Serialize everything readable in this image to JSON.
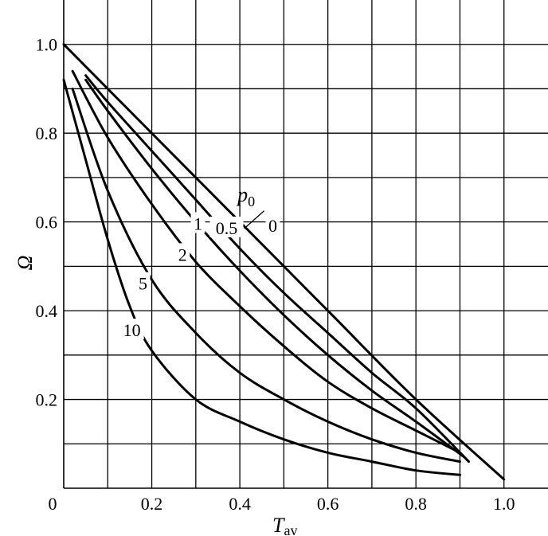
{
  "chart_data": {
    "type": "line",
    "xlabel": "T",
    "xlabel_sub": "av",
    "ylabel": "Ω",
    "xlim": [
      0,
      1.1
    ],
    "ylim": [
      0,
      1.1
    ],
    "grid": true,
    "x_ticks": [
      "0",
      "0.2",
      "0.4",
      "0.6",
      "0.8",
      "1.0"
    ],
    "x_tick_values": [
      0,
      0.2,
      0.4,
      0.6,
      0.8,
      1.0
    ],
    "y_ticks": [
      "0.2",
      "0.4",
      "0.6",
      "0.8",
      "1.0"
    ],
    "y_tick_values": [
      0.2,
      0.4,
      0.6,
      0.8,
      1.0
    ],
    "parameter_label": "p",
    "parameter_label_sub": "0",
    "series": [
      {
        "name": "0",
        "x": [
          0,
          0.2,
          0.4,
          0.6,
          0.8,
          1.0
        ],
        "y": [
          1.0,
          0.8,
          0.6,
          0.4,
          0.2,
          0.02
        ]
      },
      {
        "name": "0.5",
        "x": [
          0.05,
          0.1,
          0.2,
          0.3,
          0.4,
          0.5,
          0.6,
          0.7,
          0.8,
          0.92
        ],
        "y": [
          0.93,
          0.87,
          0.76,
          0.65,
          0.54,
          0.44,
          0.35,
          0.26,
          0.18,
          0.06
        ]
      },
      {
        "name": "1",
        "x": [
          0.05,
          0.1,
          0.2,
          0.3,
          0.4,
          0.5,
          0.6,
          0.7,
          0.8,
          0.91
        ],
        "y": [
          0.92,
          0.85,
          0.72,
          0.6,
          0.49,
          0.39,
          0.3,
          0.22,
          0.15,
          0.07
        ]
      },
      {
        "name": "2",
        "x": [
          0.02,
          0.1,
          0.2,
          0.3,
          0.4,
          0.5,
          0.6,
          0.7,
          0.8,
          0.9
        ],
        "y": [
          0.94,
          0.79,
          0.64,
          0.51,
          0.41,
          0.32,
          0.24,
          0.18,
          0.13,
          0.08
        ]
      },
      {
        "name": "5",
        "x": [
          0.02,
          0.1,
          0.2,
          0.3,
          0.4,
          0.5,
          0.6,
          0.7,
          0.8,
          0.9
        ],
        "y": [
          0.9,
          0.67,
          0.47,
          0.35,
          0.26,
          0.2,
          0.15,
          0.11,
          0.08,
          0.06
        ]
      },
      {
        "name": "10",
        "x": [
          0,
          0.05,
          0.1,
          0.15,
          0.2,
          0.3,
          0.4,
          0.5,
          0.6,
          0.7,
          0.8,
          0.9
        ],
        "y": [
          0.92,
          0.74,
          0.56,
          0.41,
          0.31,
          0.2,
          0.15,
          0.11,
          0.08,
          0.06,
          0.04,
          0.03
        ]
      }
    ],
    "curve_labels": [
      {
        "series": "0",
        "text": "0",
        "at": [
          0.475,
          0.59
        ]
      },
      {
        "series": "0.5",
        "text": "0.5",
        "at": [
          0.37,
          0.585
        ]
      },
      {
        "series": "1",
        "text": "1",
        "at": [
          0.305,
          0.595
        ]
      },
      {
        "series": "2",
        "text": "2",
        "at": [
          0.27,
          0.525
        ]
      },
      {
        "series": "5",
        "text": "5",
        "at": [
          0.18,
          0.46
        ]
      },
      {
        "series": "10",
        "text": "10",
        "at": [
          0.155,
          0.355
        ]
      }
    ],
    "parameter_label_at": [
      0.42,
      0.66
    ],
    "parameter_leader": [
      [
        0.41,
        0.585
      ],
      [
        0.455,
        0.625
      ]
    ]
  }
}
